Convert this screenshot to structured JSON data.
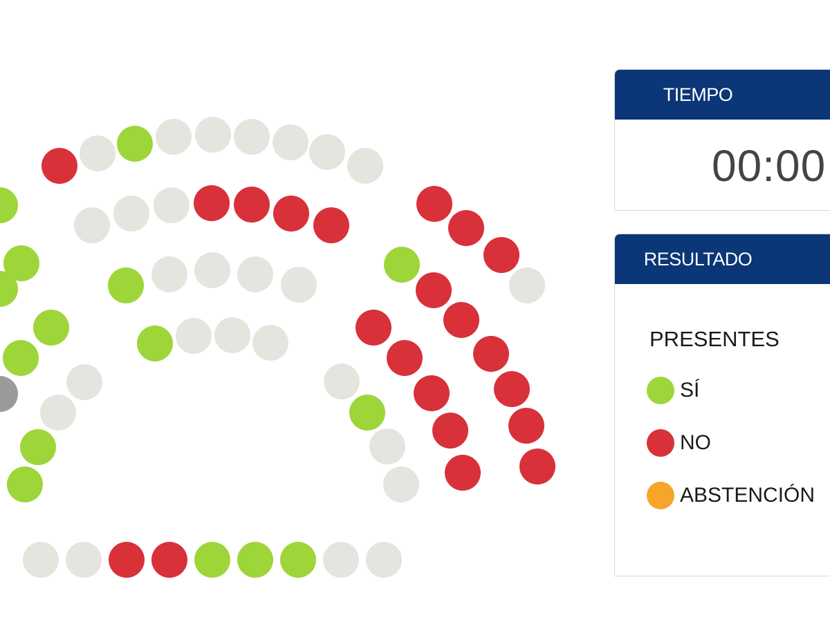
{
  "colors": {
    "yes": "#9ed63a",
    "no": "#d8313a",
    "abstention": "#f7a52a",
    "empty": "#e6e4df",
    "absent": "#9a9a9a",
    "header": "#0b3677"
  },
  "seats": [
    "no",
    "empty",
    "yes",
    "empty",
    "empty",
    "empty",
    "empty",
    "empty",
    "empty",
    "yes",
    "yes",
    "yes",
    "yes",
    "yes",
    "absent",
    "empty",
    "empty",
    "yes",
    "yes",
    "empty",
    "empty",
    "empty",
    "no",
    "no",
    "no",
    "no",
    "yes",
    "empty",
    "empty",
    "empty",
    "empty",
    "yes",
    "empty",
    "empty",
    "empty",
    "no",
    "no",
    "no",
    "empty",
    "yes",
    "no",
    "no",
    "no",
    "no",
    "no",
    "no",
    "no",
    "no",
    "no",
    "no",
    "no",
    "empty",
    "yes",
    "empty",
    "empty",
    "empty",
    "empty",
    "no",
    "no",
    "yes",
    "yes",
    "yes",
    "empty",
    "empty"
  ],
  "timer": {
    "title": "TIEMPO",
    "value": "00:00"
  },
  "result": {
    "title": "RESULTADO",
    "present_label": "PRESENTES",
    "legend": [
      {
        "label": "SÍ",
        "status": "yes"
      },
      {
        "label": "NO",
        "status": "no"
      },
      {
        "label": "ABSTENCIÓN",
        "status": "abstention"
      }
    ]
  }
}
